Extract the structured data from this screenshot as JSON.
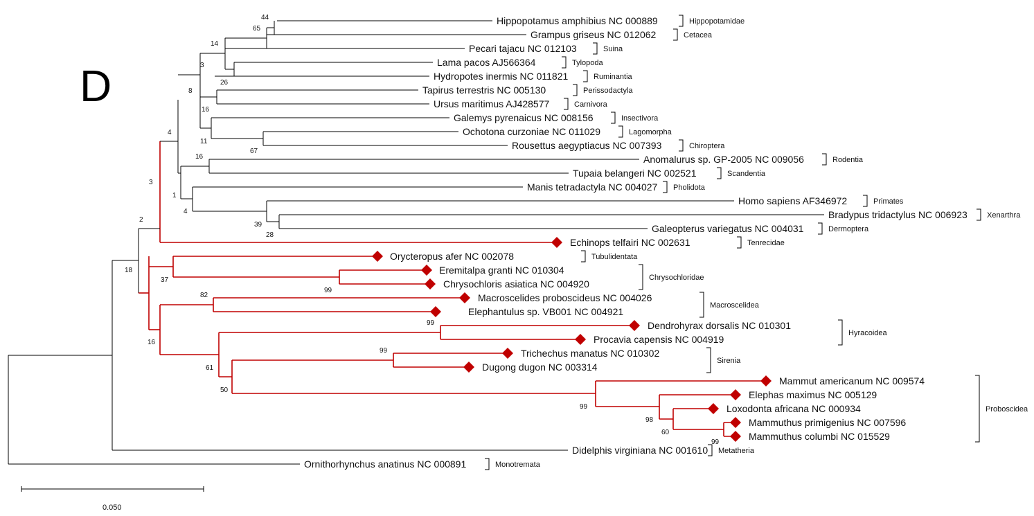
{
  "panel_label": "D",
  "scale_label": "0.050",
  "colors": {
    "black_branch": "#000000",
    "highlight_branch": "#c00000",
    "marker": "#c00000"
  },
  "marker_shape": "diamond",
  "taxa": [
    {
      "label": "Hippopotamus amphibius NC 000889",
      "marked": false
    },
    {
      "label": "Grampus griseus NC 012062",
      "marked": false
    },
    {
      "label": "Pecari tajacu NC 012103",
      "marked": false
    },
    {
      "label": "Lama pacos AJ566364",
      "marked": false
    },
    {
      "label": "Hydropotes inermis NC 011821",
      "marked": false
    },
    {
      "label": "Tapirus terrestris NC 005130",
      "marked": false
    },
    {
      "label": "Ursus maritimus AJ428577",
      "marked": false
    },
    {
      "label": "Galemys pyrenaicus NC 008156",
      "marked": false
    },
    {
      "label": "Ochotona curzoniae NC 011029",
      "marked": false
    },
    {
      "label": "Rousettus aegyptiacus NC 007393",
      "marked": false
    },
    {
      "label": "Anomalurus sp. GP-2005 NC 009056",
      "marked": false
    },
    {
      "label": "Tupaia belangeri NC 002521",
      "marked": false
    },
    {
      "label": "Manis tetradactyla NC 004027",
      "marked": false
    },
    {
      "label": "Homo sapiens AF346972",
      "marked": false
    },
    {
      "label": "Bradypus tridactylus NC 006923",
      "marked": false
    },
    {
      "label": "Galeopterus variegatus NC 004031",
      "marked": false
    },
    {
      "label": "Echinops telfairi NC 002631",
      "marked": true
    },
    {
      "label": "Orycteropus afer NC 002078",
      "marked": true
    },
    {
      "label": "Eremitalpa granti NC 010304",
      "marked": true
    },
    {
      "label": "Chrysochloris asiatica NC 004920",
      "marked": true
    },
    {
      "label": "Macroscelides proboscideus NC 004026",
      "marked": true
    },
    {
      "label": "Elephantulus sp. VB001 NC 004921",
      "marked": true
    },
    {
      "label": "Dendrohyrax dorsalis NC 010301",
      "marked": true
    },
    {
      "label": "Procavia capensis NC 004919",
      "marked": true
    },
    {
      "label": "Trichechus manatus NC 010302",
      "marked": true
    },
    {
      "label": "Dugong dugon NC 003314",
      "marked": true
    },
    {
      "label": "Mammut americanum NC 009574",
      "marked": true
    },
    {
      "label": "Elephas maximus NC 005129",
      "marked": true
    },
    {
      "label": "Loxodonta africana NC 000934",
      "marked": true
    },
    {
      "label": "Mammuthus primigenius NC 007596",
      "marked": true
    },
    {
      "label": "Mammuthus columbi NC 015529",
      "marked": true
    },
    {
      "label": "Didelphis virginiana NC 001610",
      "marked": false
    },
    {
      "label": "Ornithorhynchus anatinus NC 000891",
      "marked": false
    }
  ],
  "groups": [
    "Hippopotamidae",
    "Cetacea",
    "Suina",
    "Tylopoda",
    "Ruminantia",
    "Perissodactyla",
    "Carnivora",
    "Insectivora",
    "Lagomorpha",
    "Chiroptera",
    "Rodentia",
    "Scandentia",
    "Pholidota",
    "Primates",
    "Xenarthra",
    "Dermoptera",
    "Tenrecidae",
    "Tubulidentata",
    "Chrysochloridae",
    "Macroscelidea",
    "Hyracoidea",
    "Sirenia",
    "Proboscidea",
    "Metatheria",
    "Monotremata"
  ],
  "support_values": [
    "44",
    "65",
    "14",
    "3",
    "26",
    "8",
    "16",
    "4",
    "11",
    "67",
    "16",
    "1",
    "4",
    "39",
    "28",
    "3",
    "2",
    "18",
    "37",
    "99",
    "82",
    "99",
    "16",
    "61",
    "99",
    "50",
    "99",
    "98",
    "60",
    "99"
  ]
}
